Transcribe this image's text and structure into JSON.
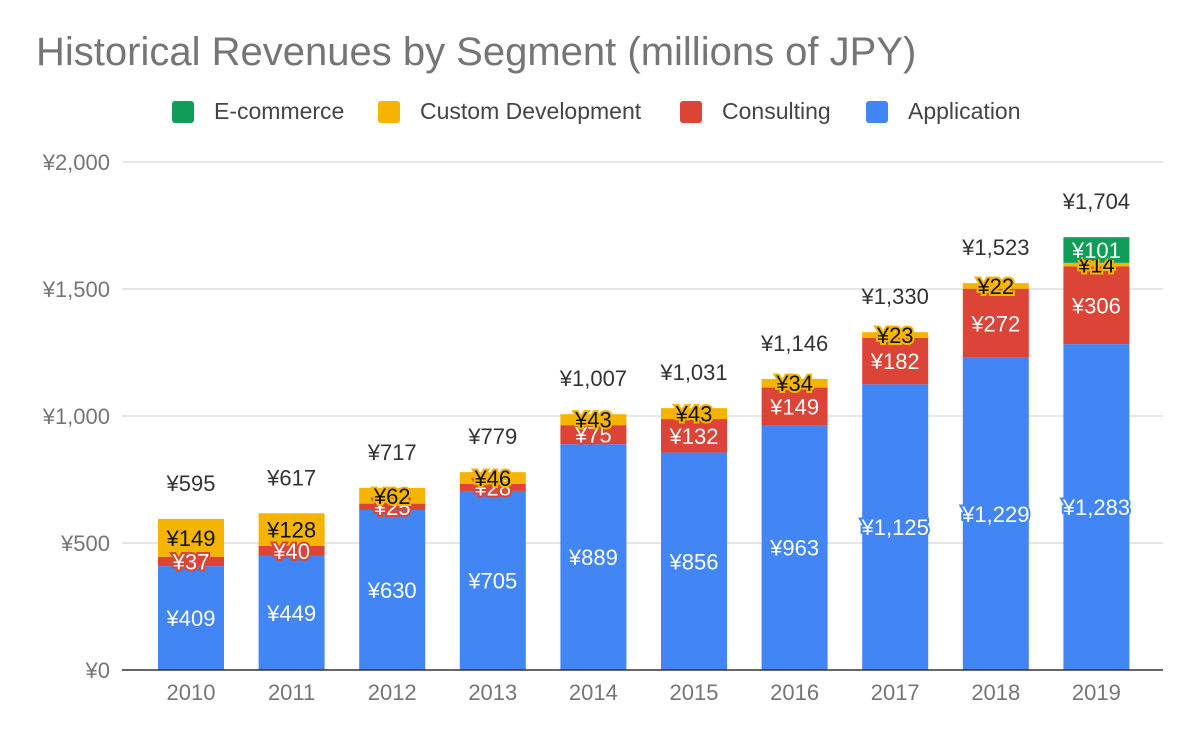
{
  "chart_data": {
    "type": "bar",
    "stacked": true,
    "title": "Historical Revenues by Segment (millions of JPY)",
    "xlabel": "",
    "ylabel": "",
    "ylim": [
      0,
      2000
    ],
    "yticks": [
      "¥0",
      "¥500",
      "¥1,000",
      "¥1,500",
      "¥2,000"
    ],
    "ytick_values": [
      0,
      500,
      1000,
      1500,
      2000
    ],
    "grid": true,
    "legend_position": "top",
    "categories": [
      "2010",
      "2011",
      "2012",
      "2013",
      "2014",
      "2015",
      "2016",
      "2017",
      "2018",
      "2019"
    ],
    "series": [
      {
        "name": "Application",
        "color": "#4285F4",
        "label_color": "#ffffff",
        "values": [
          409,
          449,
          630,
          705,
          889,
          856,
          963,
          1125,
          1229,
          1283
        ],
        "labels": [
          "¥409",
          "¥449",
          "¥630",
          "¥705",
          "¥889",
          "¥856",
          "¥963",
          "¥1,125",
          "¥1,229",
          "¥1,283"
        ]
      },
      {
        "name": "Consulting",
        "color": "#DB4437",
        "label_color": "#ffffff",
        "values": [
          37,
          40,
          25,
          28,
          75,
          132,
          149,
          182,
          272,
          306
        ],
        "labels": [
          "¥37",
          "¥40",
          "¥25",
          "¥28",
          "¥75",
          "¥132",
          "¥149",
          "¥182",
          "¥272",
          "¥306"
        ]
      },
      {
        "name": "Custom Development",
        "color": "#F4B400",
        "label_color": "#111111",
        "values": [
          149,
          128,
          62,
          46,
          43,
          43,
          34,
          23,
          22,
          14
        ],
        "labels": [
          "¥149",
          "¥128",
          "¥62",
          "¥46",
          "¥43",
          "¥43",
          "¥34",
          "¥23",
          "¥22",
          "¥14"
        ]
      },
      {
        "name": "E-commerce",
        "color": "#0F9D58",
        "label_color": "#ffffff",
        "values": [
          0,
          0,
          0,
          0,
          0,
          0,
          0,
          0,
          0,
          101
        ],
        "labels": [
          "",
          "",
          "",
          "",
          "",
          "",
          "",
          "",
          "",
          "¥101"
        ]
      }
    ],
    "totals": [
      595,
      617,
      717,
      779,
      1007,
      1031,
      1146,
      1330,
      1523,
      1704
    ],
    "total_labels": [
      "¥595",
      "¥617",
      "¥717",
      "¥779",
      "¥1,007",
      "¥1,031",
      "¥1,146",
      "¥1,330",
      "¥1,523",
      "¥1,704"
    ],
    "legend_order": [
      "E-commerce",
      "Custom Development",
      "Consulting",
      "Application"
    ]
  }
}
